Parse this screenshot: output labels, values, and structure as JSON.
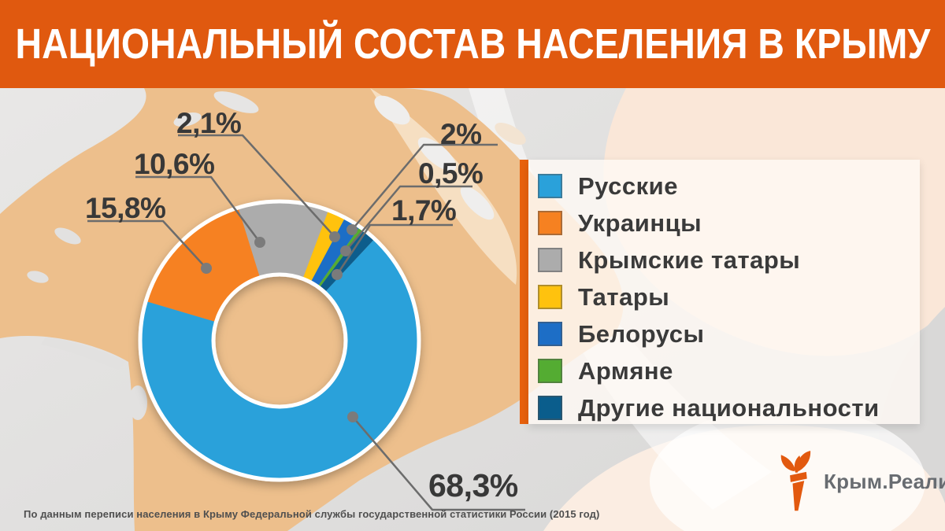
{
  "header": {
    "title": "НАЦИОНАЛЬНЫЙ СОСТАВ НАСЕЛЕНИЯ В КРЫМУ",
    "background_color": "#e0590f"
  },
  "chart_data": {
    "type": "pie",
    "donut": true,
    "title": "НАЦИОНАЛЬНЫЙ СОСТАВ НАСЕЛЕНИЯ В КРЫМУ",
    "unit": "%",
    "legend_position": "right",
    "start_angle_deg": 43,
    "series": [
      {
        "label": "Русские",
        "value": 68.3,
        "value_label": "68,3%",
        "color": "#2aa1da"
      },
      {
        "label": "Украинцы",
        "value": 15.8,
        "value_label": "15,8%",
        "color": "#f68121"
      },
      {
        "label": "Крымские татары",
        "value": 10.6,
        "value_label": "10,6%",
        "color": "#acacac"
      },
      {
        "label": "Татары",
        "value": 2.1,
        "value_label": "2,1%",
        "color": "#ffc20e"
      },
      {
        "label": "Белорусы",
        "value": 2.0,
        "value_label": "2%",
        "color": "#1d6ec6"
      },
      {
        "label": "Армяне",
        "value": 0.5,
        "value_label": "0,5%",
        "color": "#54ac32"
      },
      {
        "label": "Другие национальности",
        "value": 1.7,
        "value_label": "1,7%",
        "color": "#0a5d8c"
      }
    ]
  },
  "legend": {
    "accent_color": "#e8610d"
  },
  "background": {
    "base_gray": "#e3e2e1",
    "map_peach": "#edbf8c",
    "pale_swirl": "#fae7d8"
  },
  "footer": {
    "source": "По данным переписи населения в Крыму Федеральной службы государственной статистики России (2015 год)"
  },
  "logo": {
    "text": "Крым.Реалии",
    "icon": "torch-icon",
    "icon_color": "#e2590f"
  }
}
